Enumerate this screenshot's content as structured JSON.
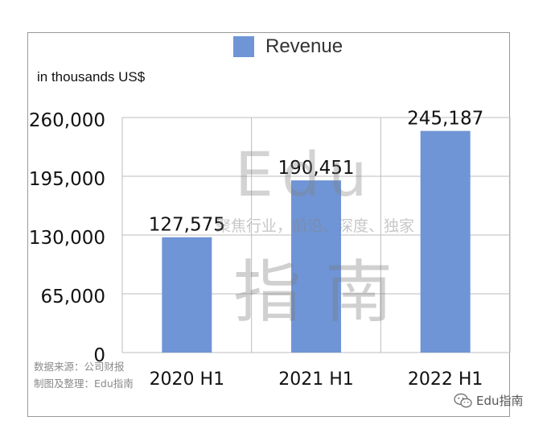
{
  "chart_data": {
    "type": "bar",
    "categories": [
      "2020 H1",
      "2021 H1",
      "2022 H1"
    ],
    "series": [
      {
        "name": "Revenue",
        "values": [
          127575,
          190451,
          245187
        ],
        "color": "#6f95d6"
      }
    ],
    "value_labels": [
      "127,575",
      "190,451",
      "245,187"
    ],
    "ylabel": "in thousands US$",
    "ylim": [
      0,
      260000
    ],
    "yticks": [
      0,
      65000,
      130000,
      195000,
      260000
    ],
    "ytick_labels": [
      "0",
      "65,000",
      "130,000",
      "195,000",
      "260,000"
    ],
    "grid": true,
    "legend": "top-center"
  },
  "legend": {
    "label": "Revenue",
    "color": "#6f95d6"
  },
  "unit_label": "in thousands US$",
  "watermark": {
    "latin": "Edu",
    "tagline": "聚焦行业，前沿、深度、独家",
    "cjk": "指南"
  },
  "source": {
    "line1": "数据来源：公司财报",
    "line2": "制图及整理：Edu指南"
  },
  "brand": {
    "icon": "wechat-icon",
    "label": "Edu指南"
  }
}
